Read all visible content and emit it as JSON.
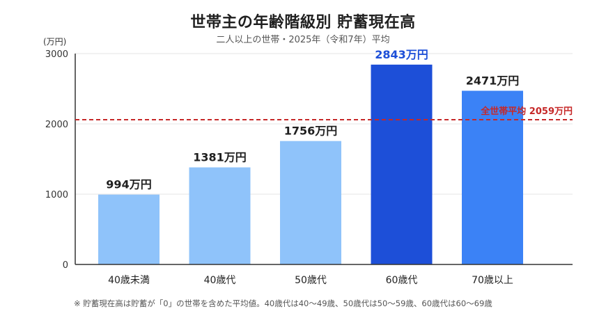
{
  "chart_data": {
    "type": "bar",
    "title": "世帯主の年齢階級別 貯蓄現在高",
    "subtitle": "二人以上の世帯・2025年（令和7年）平均",
    "ylabel": "(万円)",
    "xlabel": "",
    "ylim": [
      0,
      3000
    ],
    "yticks": [
      0,
      1000,
      2000,
      3000
    ],
    "grid": true,
    "categories": [
      "40歳未満",
      "40歳代",
      "50歳代",
      "60歳代",
      "70歳以上"
    ],
    "values": [
      994,
      1381,
      1756,
      2843,
      2471
    ],
    "data_labels": [
      "994万円",
      "1381万円",
      "1756万円",
      "2843万円",
      "2471万円"
    ],
    "bar_colors": [
      "#8fc3fa",
      "#8fc3fa",
      "#8fc3fa",
      "#1d4fd8",
      "#3b82f6"
    ],
    "label_colors": [
      "#1f1f1f",
      "#1f1f1f",
      "#1f1f1f",
      "#1d4fd8",
      "#1f1f1f"
    ],
    "reference_line": {
      "value": 2059,
      "label": "全世帯平均 2059万円",
      "color": "#c62828",
      "style": "dashed"
    },
    "footnote": "※ 貯蓄現在高は貯蓄が「0」の世帯を含めた平均値。40歳代は40〜49歳、50歳代は50〜59歳、60歳代は60〜69歳"
  }
}
